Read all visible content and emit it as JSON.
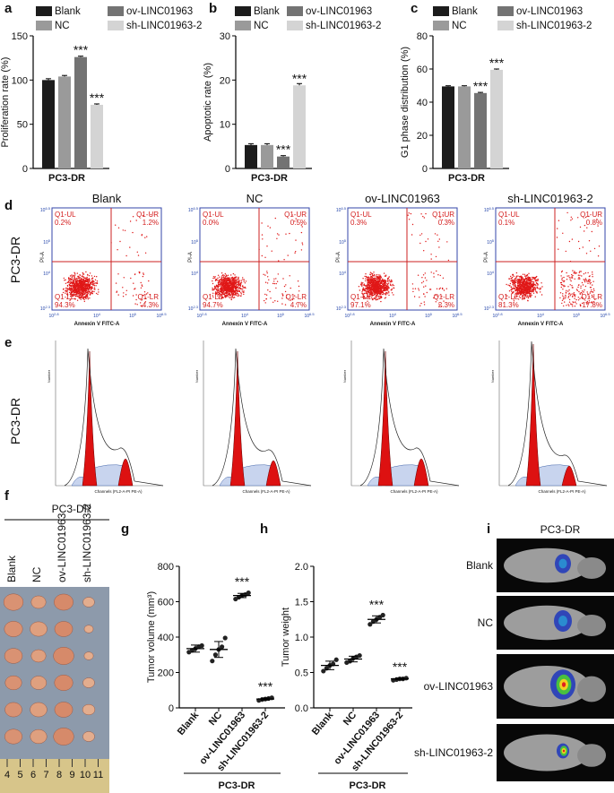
{
  "panel_labels": [
    "a",
    "b",
    "c",
    "d",
    "e",
    "f",
    "g",
    "h",
    "i"
  ],
  "chart_data": [
    {
      "type": "bar",
      "y_label": "Proliferation rate (%)",
      "x_label": "PC3-DR",
      "categories": [
        "Blank",
        "NC",
        "ov-LINC01963",
        "sh-LINC01963-2"
      ],
      "colors": [
        "#1c1c1c",
        "#9a9a9a",
        "#737373",
        "#d4d4d4"
      ],
      "values": [
        100,
        104,
        126,
        72
      ],
      "errors": [
        1.5,
        1.2,
        1,
        1
      ],
      "significance": [
        null,
        null,
        "***",
        "***"
      ],
      "ylim": [
        0,
        150
      ],
      "yticks": [
        0,
        50,
        100,
        150
      ]
    },
    {
      "type": "bar",
      "y_label": "Apoptotic rate (%)",
      "x_label": "PC3-DR",
      "categories": [
        "Blank",
        "NC",
        "ov-LINC01963",
        "sh-LINC01963-2"
      ],
      "colors": [
        "#1c1c1c",
        "#9a9a9a",
        "#737373",
        "#d4d4d4"
      ],
      "values": [
        5.3,
        5.3,
        2.7,
        18.8
      ],
      "errors": [
        0.3,
        0.3,
        0.2,
        0.4
      ],
      "significance": [
        null,
        null,
        "***",
        "***"
      ],
      "ylim": [
        0,
        30
      ],
      "yticks": [
        0,
        10,
        20,
        30
      ]
    },
    {
      "type": "bar",
      "y_label": "G1 phase distribution (%)",
      "x_label": "PC3-DR",
      "categories": [
        "Blank",
        "NC",
        "ov-LINC01963",
        "sh-LINC01963-2"
      ],
      "colors": [
        "#1c1c1c",
        "#9a9a9a",
        "#737373",
        "#d4d4d4"
      ],
      "values": [
        49.5,
        49.5,
        45.5,
        59.5
      ],
      "errors": [
        0.4,
        0.4,
        0.4,
        0.5
      ],
      "significance": [
        null,
        null,
        "***",
        "***"
      ],
      "ylim": [
        0,
        80
      ],
      "yticks": [
        0,
        20,
        40,
        60,
        80
      ]
    },
    {
      "type": "dot",
      "y_label": "Tumor volume (mm³)",
      "x_label": "PC3-DR",
      "categories": [
        "Blank",
        "NC",
        "ov-LINC01963",
        "sh-LINC01963-2"
      ],
      "points": [
        [
          315,
          325,
          335,
          345,
          352
        ],
        [
          265,
          300,
          330,
          345,
          395
        ],
        [
          615,
          625,
          635,
          640,
          650
        ],
        [
          42,
          47,
          50,
          53,
          57
        ]
      ],
      "means": [
        335,
        330,
        635,
        50
      ],
      "sds": [
        20,
        45,
        12,
        6
      ],
      "significance": [
        null,
        null,
        "***",
        "***"
      ],
      "ylim": [
        0,
        800
      ],
      "yticks": [
        0,
        200,
        400,
        600,
        800
      ]
    },
    {
      "type": "dot",
      "y_label": "Tumor weight",
      "x_label": "PC3-DR",
      "categories": [
        "Blank",
        "NC",
        "ov-LINC01963",
        "sh-LINC01963-2"
      ],
      "points": [
        [
          0.52,
          0.56,
          0.6,
          0.62,
          0.68
        ],
        [
          0.64,
          0.66,
          0.7,
          0.72,
          0.74
        ],
        [
          1.18,
          1.22,
          1.25,
          1.28,
          1.31
        ],
        [
          0.39,
          0.4,
          0.41,
          0.41,
          0.42
        ]
      ],
      "means": [
        0.6,
        0.69,
        1.25,
        0.41
      ],
      "sds": [
        0.06,
        0.04,
        0.05,
        0.01
      ],
      "significance": [
        null,
        null,
        "***",
        "***"
      ],
      "ylim": [
        0,
        2
      ],
      "yticks": [
        {
          "value": 0,
          "label": "0.0"
        },
        0.5,
        {
          "value": 1,
          "label": "1.0"
        },
        1.5,
        {
          "value": 2,
          "label": "2.0"
        }
      ]
    }
  ],
  "flow_cytometry": {
    "row_label": "PC3-DR",
    "y_label": "PI-A",
    "x_label": "Annexin V FITC-A",
    "x_ticks": [
      {
        "base": "10",
        "exponent": "2.8"
      },
      {
        "base": "10",
        "exponent": "4"
      },
      {
        "base": "10",
        "exponent": "5"
      },
      {
        "base": "10",
        "exponent": "6.5"
      }
    ],
    "y_ticks": [
      {
        "base": "10",
        "exponent": "2.3"
      },
      {
        "base": "10",
        "exponent": "4"
      },
      {
        "base": "10",
        "exponent": "5"
      },
      {
        "base": "10",
        "exponent": "6.5"
      }
    ],
    "panels": [
      {
        "title": "Blank",
        "quadrants": [
          {
            "name": "Q1-UL",
            "value": "0.2%"
          },
          {
            "name": "Q1-UR",
            "value": "1.2%"
          },
          {
            "name": "Q1-LL",
            "value": "94.3%"
          },
          {
            "name": "Q1-LR",
            "value": "4.3%"
          }
        ]
      },
      {
        "title": "NC",
        "quadrants": [
          {
            "name": "Q1-UL",
            "value": "0.0%"
          },
          {
            "name": "Q1-UR",
            "value": "0.5%"
          },
          {
            "name": "Q1-LL",
            "value": "94.7%"
          },
          {
            "name": "Q1-LR",
            "value": "4.7%"
          }
        ]
      },
      {
        "title": "ov-LINC01963",
        "quadrants": [
          {
            "name": "Q1-UL",
            "value": "0.3%"
          },
          {
            "name": "Q1-UR",
            "value": "0.3%"
          },
          {
            "name": "Q1-LL",
            "value": "97.1%"
          },
          {
            "name": "Q1-LR",
            "value": "2.3%"
          }
        ]
      },
      {
        "title": "sh-LINC01963-2",
        "quadrants": [
          {
            "name": "Q1-UL",
            "value": "0.1%"
          },
          {
            "name": "Q1-UR",
            "value": "0.8%"
          },
          {
            "name": "Q1-LL",
            "value": "81.3%"
          },
          {
            "name": "Q1-LR",
            "value": "17.8%"
          }
        ]
      }
    ]
  },
  "cell_cycle": {
    "row_label": "PC3-DR",
    "y_label": "Number",
    "x_label": "Channels (FL2-A-PI PE-A)"
  },
  "tumor_photo": {
    "header": "PC3-DR",
    "groups": [
      "Blank",
      "NC",
      "ov-LINC01963",
      "sh-LINC01963-2"
    ],
    "ruler": [
      "4",
      "5",
      "6",
      "7",
      "8",
      "9",
      "10",
      "11"
    ]
  },
  "imaging": {
    "header": "PC3-DR",
    "rows": [
      "Blank",
      "NC",
      "ov-LINC01963",
      "sh-LINC01963-2"
    ]
  }
}
